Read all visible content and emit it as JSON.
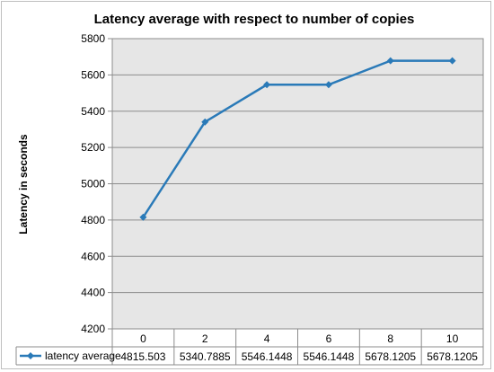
{
  "chart_data": {
    "type": "line",
    "title": "Latency average with respect to number of copies",
    "ylabel": "Latency in seconds",
    "xlabel": "",
    "categories": [
      "0",
      "2",
      "4",
      "6",
      "8",
      "10"
    ],
    "series": [
      {
        "name": "latency average",
        "values": [
          4815.503,
          5340.7885,
          5546.1448,
          5546.1448,
          5678.1205,
          5678.1205
        ],
        "value_labels": [
          "4815.503",
          "5340.7885",
          "5546.1448",
          "5546.1448",
          "5678.1205",
          "5678.1205"
        ],
        "color": "#2a7ab8"
      }
    ],
    "ylim": [
      4200,
      5800
    ],
    "yticks": [
      4200,
      4400,
      4600,
      4800,
      5000,
      5200,
      5400,
      5600,
      5800
    ],
    "grid": true,
    "plot_background": "#e6e6e6",
    "legend": "data-table-below"
  }
}
